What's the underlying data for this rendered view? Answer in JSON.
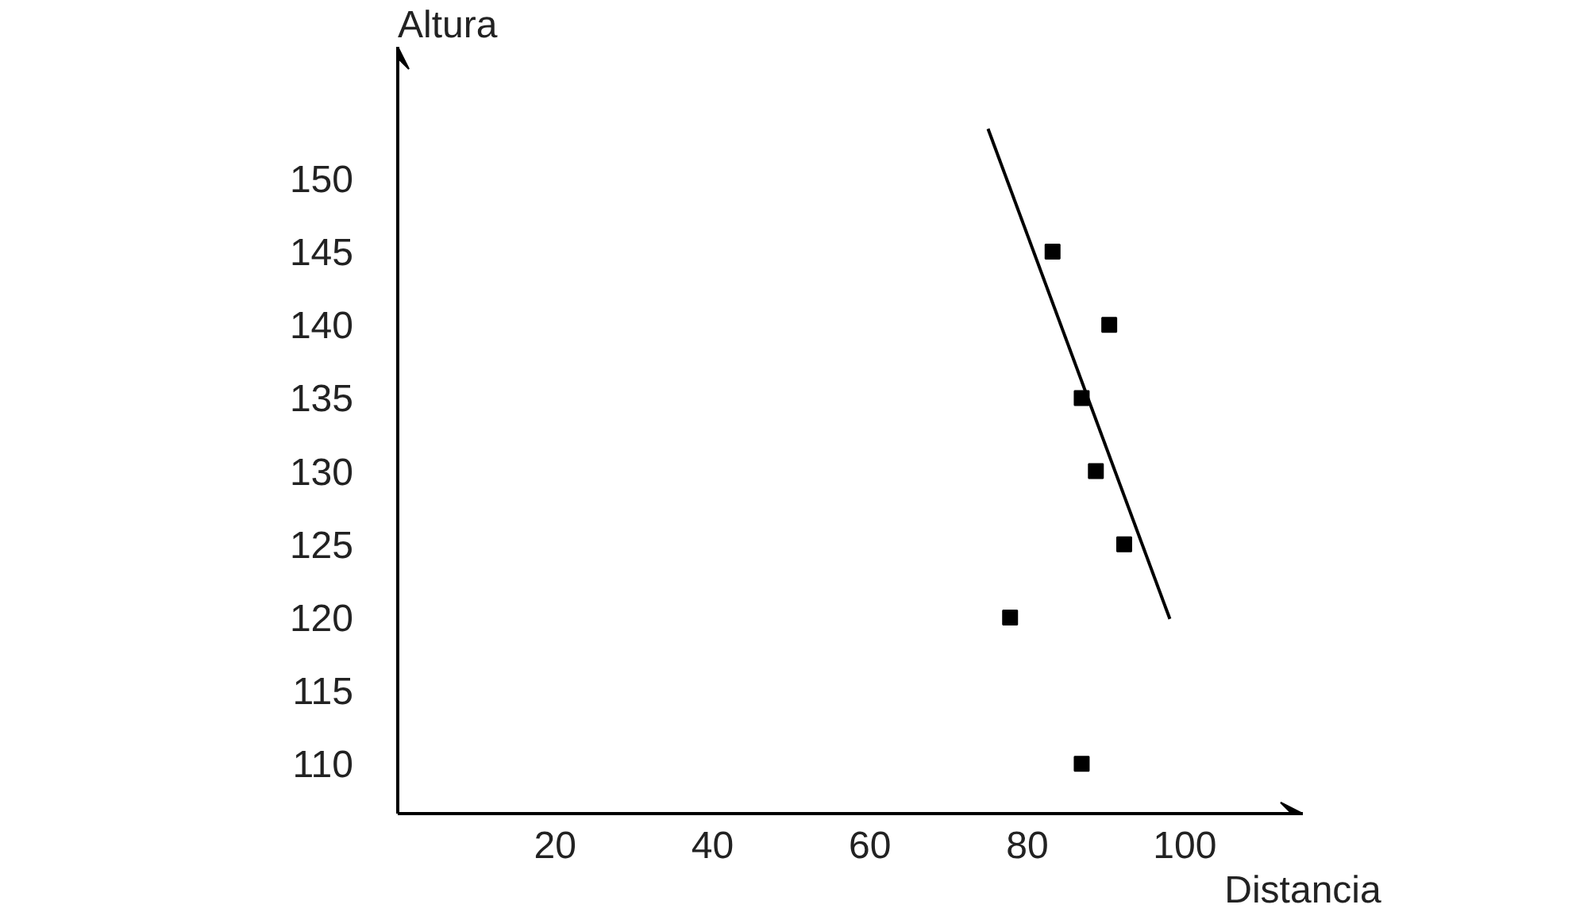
{
  "chart_data": {
    "type": "scatter",
    "xlabel": "Distancia",
    "ylabel": "Altura",
    "x": [
      83.2,
      90.4,
      86.9,
      88.7,
      92.3,
      77.8,
      86.9
    ],
    "series": [
      {
        "color": "#000000",
        "marker": "square",
        "values": [
          145,
          140,
          135,
          130,
          125,
          120,
          110
        ]
      },
      {
        "type": "line",
        "marker": "none",
        "color": "#000000",
        "x": [
          75.0,
          98.1
        ],
        "values": [
          153.4,
          119.9
        ]
      }
    ],
    "xlim": [
      0,
      115
    ],
    "ylim": [
      106.6,
      159
    ],
    "xticks": [
      20,
      40,
      60,
      80,
      100
    ],
    "yticks": [
      110,
      115,
      120,
      125,
      130,
      135,
      140,
      145,
      150
    ],
    "grid": false
  }
}
